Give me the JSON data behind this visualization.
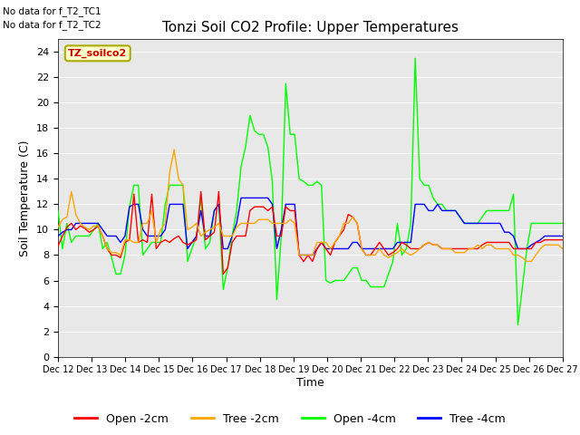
{
  "title": "Tonzi Soil CO2 Profile: Upper Temperatures",
  "ylabel": "Soil Temperature (C)",
  "xlabel": "Time",
  "top_left_text1": "No data for f_T2_TC1",
  "top_left_text2": "No data for f_T2_TC2",
  "legend_label": "TZ_soilco2",
  "ylim": [
    0,
    25
  ],
  "yticks": [
    0,
    2,
    4,
    6,
    8,
    10,
    12,
    14,
    16,
    18,
    20,
    22,
    24
  ],
  "xtick_labels": [
    "Dec 12",
    "Dec 13",
    "Dec 14",
    "Dec 15",
    "Dec 16",
    "Dec 17",
    "Dec 18",
    "Dec 19",
    "Dec 20",
    "Dec 21",
    "Dec 22",
    "Dec 23",
    "Dec 24",
    "Dec 25",
    "Dec 26",
    "Dec 27"
  ],
  "colors": {
    "open_2cm": "#FF0000",
    "tree_2cm": "#FFA500",
    "open_4cm": "#00FF00",
    "tree_4cm": "#0000FF"
  },
  "bg_color": "#E8E8E8",
  "legend_series_labels": [
    "Open -2cm",
    "Tree -2cm",
    "Open -4cm",
    "Tree -4cm"
  ],
  "open_2cm": [
    8.7,
    9.5,
    10.2,
    10.5,
    10.0,
    10.3,
    10.1,
    9.8,
    10.0,
    10.3,
    9.5,
    8.5,
    8.0,
    8.0,
    7.8,
    9.0,
    9.2,
    12.8,
    9.0,
    9.2,
    9.0,
    12.8,
    8.5,
    9.0,
    9.2,
    9.0,
    9.3,
    9.5,
    9.0,
    8.8,
    9.0,
    9.2,
    13.0,
    9.2,
    9.5,
    9.8,
    13.0,
    6.5,
    7.0,
    9.0,
    9.5,
    9.5,
    9.5,
    11.5,
    11.8,
    11.8,
    11.8,
    11.5,
    11.8,
    9.5,
    9.5,
    11.8,
    11.5,
    11.5,
    8.0,
    7.5,
    8.0,
    7.5,
    8.5,
    9.0,
    8.5,
    8.0,
    9.0,
    9.5,
    10.0,
    11.2,
    11.0,
    10.5,
    8.5,
    8.0,
    8.0,
    8.5,
    9.0,
    8.5,
    8.0,
    8.2,
    8.5,
    9.0,
    8.8,
    8.5,
    8.5,
    8.5,
    8.8,
    9.0,
    8.8,
    8.8,
    8.5,
    8.5,
    8.5,
    8.5,
    8.5,
    8.5,
    8.5,
    8.5,
    8.5,
    8.8,
    9.0,
    9.0,
    9.0,
    9.0,
    9.0,
    9.0,
    8.5,
    8.5,
    8.5,
    8.5,
    8.5,
    9.0,
    9.0,
    9.2,
    9.2,
    9.2,
    9.2,
    9.2
  ],
  "tree_2cm": [
    10.2,
    10.8,
    11.0,
    13.0,
    11.2,
    10.5,
    10.2,
    10.0,
    10.3,
    10.3,
    9.5,
    8.5,
    8.2,
    8.2,
    8.0,
    9.2,
    9.2,
    9.0,
    9.0,
    10.5,
    10.5,
    11.5,
    9.0,
    10.0,
    10.5,
    14.5,
    16.3,
    14.0,
    13.5,
    10.0,
    10.2,
    10.5,
    9.5,
    9.8,
    10.0,
    10.2,
    10.5,
    9.5,
    9.5,
    9.5,
    10.2,
    10.5,
    10.5,
    10.5,
    10.5,
    10.8,
    10.8,
    10.8,
    10.5,
    10.5,
    10.5,
    10.5,
    10.8,
    10.5,
    8.0,
    8.0,
    8.0,
    8.0,
    9.0,
    9.0,
    9.0,
    8.5,
    9.0,
    9.5,
    10.5,
    10.5,
    11.0,
    10.5,
    8.5,
    8.0,
    8.0,
    8.0,
    8.5,
    8.0,
    7.8,
    8.0,
    8.2,
    8.5,
    8.2,
    8.0,
    8.2,
    8.5,
    8.8,
    9.0,
    8.8,
    8.8,
    8.5,
    8.5,
    8.5,
    8.2,
    8.2,
    8.2,
    8.5,
    8.5,
    8.8,
    8.5,
    8.8,
    8.8,
    8.5,
    8.5,
    8.5,
    8.5,
    8.0,
    8.0,
    7.8,
    7.5,
    7.5,
    8.0,
    8.5,
    8.8,
    8.8,
    8.8,
    8.8,
    8.5
  ],
  "open_4cm": [
    11.5,
    8.5,
    10.5,
    9.0,
    9.5,
    9.5,
    9.5,
    9.5,
    10.0,
    10.5,
    8.5,
    9.0,
    7.8,
    6.5,
    6.5,
    8.0,
    11.8,
    13.5,
    13.5,
    8.0,
    8.5,
    9.0,
    9.0,
    9.0,
    12.0,
    13.5,
    13.5,
    13.5,
    13.5,
    7.5,
    8.5,
    9.5,
    12.5,
    8.5,
    9.0,
    11.5,
    12.0,
    5.3,
    7.0,
    9.5,
    11.5,
    15.0,
    16.5,
    19.0,
    17.8,
    17.5,
    17.5,
    16.5,
    13.8,
    4.5,
    9.5,
    21.5,
    17.5,
    17.5,
    14.0,
    13.8,
    13.5,
    13.5,
    13.8,
    13.5,
    6.0,
    5.8,
    6.0,
    6.0,
    6.0,
    6.5,
    7.0,
    7.0,
    6.0,
    6.0,
    5.5,
    5.5,
    5.5,
    5.5,
    6.5,
    7.5,
    10.5,
    8.0,
    8.5,
    10.5,
    23.5,
    14.0,
    13.5,
    13.5,
    12.5,
    12.0,
    12.0,
    11.5,
    11.5,
    11.5,
    11.0,
    10.5,
    10.5,
    10.5,
    10.5,
    11.0,
    11.5,
    11.5,
    11.5,
    11.5,
    11.5,
    11.5,
    12.8,
    2.5,
    5.5,
    8.5,
    10.5,
    10.5,
    10.5,
    10.5,
    10.5,
    10.5,
    10.5,
    10.5
  ],
  "tree_4cm": [
    9.5,
    9.8,
    10.0,
    10.0,
    10.5,
    10.5,
    10.5,
    10.5,
    10.5,
    10.5,
    10.0,
    9.5,
    9.5,
    9.5,
    9.0,
    9.5,
    11.8,
    12.0,
    12.0,
    10.0,
    9.5,
    9.5,
    9.5,
    9.5,
    10.0,
    12.0,
    12.0,
    12.0,
    12.0,
    8.5,
    9.0,
    9.5,
    11.5,
    9.5,
    9.5,
    11.5,
    12.0,
    8.5,
    8.5,
    9.5,
    10.5,
    12.5,
    12.5,
    12.5,
    12.5,
    12.5,
    12.5,
    12.5,
    12.0,
    8.5,
    10.0,
    12.0,
    12.0,
    12.0,
    8.0,
    8.0,
    8.0,
    8.0,
    8.5,
    9.0,
    8.5,
    8.5,
    8.5,
    8.5,
    8.5,
    8.5,
    9.0,
    9.0,
    8.5,
    8.5,
    8.5,
    8.5,
    8.5,
    8.5,
    8.5,
    8.5,
    9.0,
    9.0,
    9.0,
    9.0,
    12.0,
    12.0,
    12.0,
    11.5,
    11.5,
    12.0,
    11.5,
    11.5,
    11.5,
    11.5,
    11.0,
    10.5,
    10.5,
    10.5,
    10.5,
    10.5,
    10.5,
    10.5,
    10.5,
    10.5,
    9.8,
    9.8,
    9.5,
    8.5,
    8.5,
    8.5,
    8.8,
    9.0,
    9.2,
    9.5,
    9.5,
    9.5,
    9.5,
    9.5
  ]
}
